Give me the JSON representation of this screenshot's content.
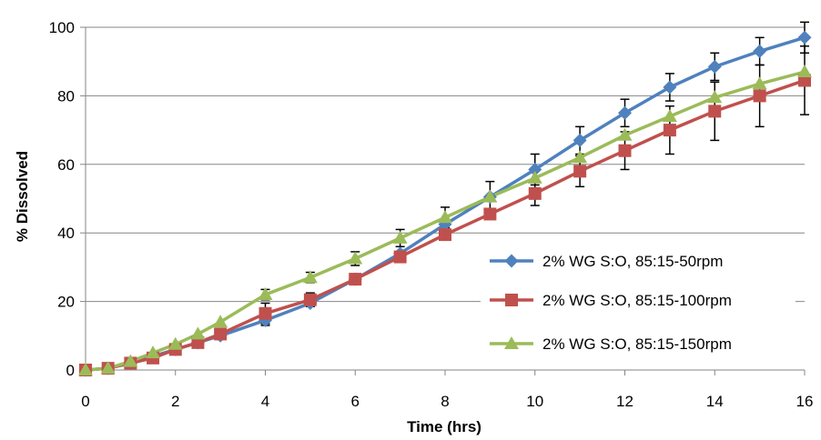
{
  "chart_data": {
    "type": "line",
    "title": "",
    "xlabel": "Time (hrs)",
    "ylabel": "% Dissolved",
    "xlim": [
      0,
      16
    ],
    "ylim": [
      0,
      100
    ],
    "x_ticks": [
      0,
      2,
      4,
      6,
      8,
      10,
      12,
      14,
      16
    ],
    "y_ticks": [
      0,
      20,
      40,
      60,
      80,
      100
    ],
    "grid": "horizontal",
    "legend_position": "right-middle",
    "error_bars": true,
    "series": [
      {
        "name": "2% WG S:O, 85:15-50rpm",
        "color": "#4f81bd",
        "marker": "diamond",
        "points": [
          {
            "x": 0,
            "y": 0
          },
          {
            "x": 0.5,
            "y": 0.5
          },
          {
            "x": 1,
            "y": 2
          },
          {
            "x": 1.5,
            "y": 4
          },
          {
            "x": 2,
            "y": 6
          },
          {
            "x": 2.5,
            "y": 8
          },
          {
            "x": 3,
            "y": 10
          },
          {
            "x": 4,
            "y": 14.5
          },
          {
            "x": 5,
            "y": 19.5
          },
          {
            "x": 6,
            "y": 26.5
          },
          {
            "x": 7,
            "y": 34
          },
          {
            "x": 8,
            "y": 42.5
          },
          {
            "x": 9,
            "y": 50.5
          },
          {
            "x": 10,
            "y": 58.5
          },
          {
            "x": 11,
            "y": 67
          },
          {
            "x": 12,
            "y": 75
          },
          {
            "x": 13,
            "y": 82.5
          },
          {
            "x": 14,
            "y": 88.5
          },
          {
            "x": 15,
            "y": 93
          },
          {
            "x": 16,
            "y": 97
          }
        ],
        "errors": [
          0,
          0,
          0,
          0,
          0,
          0,
          0,
          1.5,
          0,
          0,
          0,
          0,
          0,
          4.5,
          4,
          4,
          4,
          4,
          4,
          4.5
        ]
      },
      {
        "name": "2% WG S:O, 85:15-100rpm",
        "color": "#c0504d",
        "marker": "square",
        "points": [
          {
            "x": 0,
            "y": 0
          },
          {
            "x": 0.5,
            "y": 0.5
          },
          {
            "x": 1,
            "y": 2
          },
          {
            "x": 1.5,
            "y": 3.5
          },
          {
            "x": 2,
            "y": 6
          },
          {
            "x": 2.5,
            "y": 8
          },
          {
            "x": 3,
            "y": 10.5
          },
          {
            "x": 4,
            "y": 16.5
          },
          {
            "x": 5,
            "y": 20.5
          },
          {
            "x": 6,
            "y": 26.5
          },
          {
            "x": 7,
            "y": 33
          },
          {
            "x": 8,
            "y": 39.5
          },
          {
            "x": 9,
            "y": 45.5
          },
          {
            "x": 10,
            "y": 51.5
          },
          {
            "x": 11,
            "y": 58
          },
          {
            "x": 12,
            "y": 64
          },
          {
            "x": 13,
            "y": 70
          },
          {
            "x": 14,
            "y": 75.5
          },
          {
            "x": 15,
            "y": 80
          },
          {
            "x": 16,
            "y": 84.5
          }
        ],
        "errors": [
          0,
          0,
          0,
          0,
          0,
          0,
          0,
          3,
          2,
          0,
          0,
          0,
          0,
          3.5,
          4.5,
          5.5,
          7,
          8.5,
          9,
          10
        ]
      },
      {
        "name": "2% WG S:O, 85:15-150rpm",
        "color": "#9bbb59",
        "marker": "triangle",
        "points": [
          {
            "x": 0,
            "y": 0
          },
          {
            "x": 0.5,
            "y": 0.5
          },
          {
            "x": 1,
            "y": 2.5
          },
          {
            "x": 1.5,
            "y": 5
          },
          {
            "x": 2,
            "y": 7.5
          },
          {
            "x": 2.5,
            "y": 10.5
          },
          {
            "x": 3,
            "y": 14
          },
          {
            "x": 4,
            "y": 22
          },
          {
            "x": 5,
            "y": 27
          },
          {
            "x": 6,
            "y": 32.5
          },
          {
            "x": 7,
            "y": 38.5
          },
          {
            "x": 8,
            "y": 44.5
          },
          {
            "x": 9,
            "y": 50.5
          },
          {
            "x": 10,
            "y": 56
          },
          {
            "x": 11,
            "y": 62
          },
          {
            "x": 12,
            "y": 68.5
          },
          {
            "x": 13,
            "y": 74
          },
          {
            "x": 14,
            "y": 79.5
          },
          {
            "x": 15,
            "y": 83.5
          },
          {
            "x": 16,
            "y": 87
          }
        ],
        "errors": [
          0,
          0,
          0,
          0,
          0,
          0,
          0,
          1.5,
          1.5,
          2,
          2.5,
          3,
          4.5,
          0,
          0,
          0,
          0,
          0,
          0,
          0
        ]
      }
    ]
  }
}
